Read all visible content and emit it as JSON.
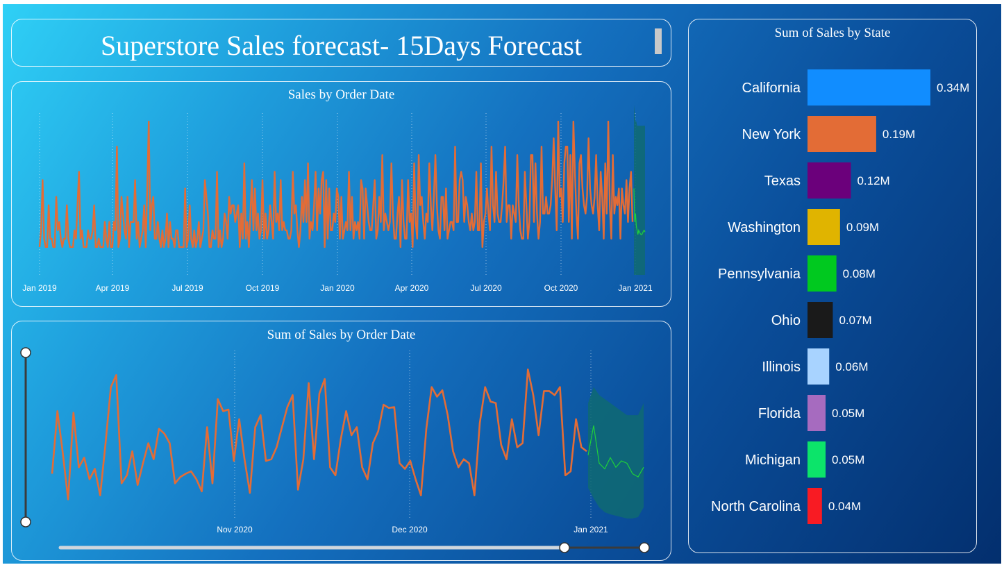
{
  "header": {
    "title": "Superstore Sales forecast- 15Days Forecast"
  },
  "colors": {
    "actual_line": "#e36c36",
    "forecast_line": "#1fd13a",
    "forecast_band": "#0f6a72",
    "bar_colors": [
      "#118dff",
      "#e36c36",
      "#6b007b",
      "#e0b400",
      "#00c91f",
      "#1a1a1a",
      "#a8d3ff",
      "#a66bbf",
      "#0ce46a",
      "#f81b23"
    ]
  },
  "chart_data": [
    {
      "type": "line",
      "title": "Sales by Order Date",
      "x_ticks": [
        "Jan 2019",
        "Apr 2019",
        "Jul 2019",
        "Oct 2019",
        "Jan 2020",
        "Apr 2020",
        "Jul 2020",
        "Oct 2020",
        "Jan 2021"
      ],
      "x_range": [
        "2019-01-01",
        "2021-01-15"
      ],
      "grid": "vertical dotted",
      "series": [
        {
          "values": [
            1,
            3,
            9,
            2,
            1,
            1,
            6,
            2,
            2,
            1,
            1,
            7,
            3,
            4,
            2,
            1,
            2,
            2,
            6,
            2,
            1,
            1,
            1,
            3,
            2,
            6,
            10,
            2,
            3,
            1,
            1,
            1,
            3,
            2,
            2,
            3,
            6,
            1,
            1,
            2,
            1,
            1,
            1,
            4,
            2,
            1,
            4,
            1,
            1,
            4,
            3,
            13,
            1,
            2,
            7,
            5,
            3,
            2,
            7,
            1,
            4,
            4,
            4,
            9,
            2,
            4,
            1,
            2,
            3,
            6,
            1,
            8,
            16,
            3,
            6,
            7,
            2,
            2,
            4,
            2,
            1,
            3,
            1,
            2,
            5,
            1,
            4,
            2,
            2,
            1,
            3,
            3,
            1,
            1,
            1,
            1,
            8,
            1,
            2,
            6,
            2,
            1,
            3,
            1,
            2,
            4,
            1,
            2,
            3,
            9,
            7,
            5,
            1,
            1,
            3,
            2,
            2,
            10,
            1,
            3,
            1,
            2,
            5,
            4,
            2,
            7,
            5,
            6,
            6,
            4,
            5,
            6,
            1,
            5,
            2,
            11,
            2,
            4,
            1,
            5,
            9,
            3,
            8,
            3,
            5,
            2,
            3,
            9,
            2,
            5,
            2,
            3,
            6,
            4,
            2,
            10,
            4,
            5,
            3,
            9,
            3,
            4,
            3,
            3,
            2,
            2,
            3,
            10,
            5,
            6,
            3,
            1,
            3,
            7,
            4,
            9,
            4,
            11,
            2,
            4,
            3,
            6,
            10,
            3,
            8,
            5,
            9,
            10,
            1,
            9,
            2,
            8,
            3,
            3,
            5,
            4,
            8,
            7,
            2,
            7,
            2,
            3,
            4,
            3,
            10,
            3,
            7,
            2,
            4,
            3,
            4,
            2,
            9,
            8,
            2,
            8,
            6,
            4,
            3,
            3,
            6,
            9,
            2,
            3,
            7,
            4,
            12,
            3,
            5,
            4,
            3,
            4,
            11,
            5,
            2,
            2,
            5,
            7,
            1,
            9,
            4,
            2,
            2,
            9,
            4,
            5,
            1,
            11,
            4,
            2,
            12,
            6,
            7,
            4,
            2,
            5,
            4,
            11,
            6,
            3,
            7,
            12,
            6,
            3,
            2,
            7,
            7,
            3,
            8,
            2,
            3,
            4,
            4,
            3,
            13,
            4,
            4,
            9,
            10,
            9,
            4,
            7,
            6,
            4,
            3,
            5,
            3,
            4,
            10,
            3,
            3,
            11,
            1,
            4,
            5,
            8,
            5,
            3,
            13,
            6,
            4,
            10,
            5,
            4,
            4,
            6,
            9,
            13,
            4,
            6,
            6,
            2,
            6,
            5,
            4,
            12,
            6,
            3,
            2,
            2,
            10,
            6,
            2,
            4,
            12,
            12,
            4,
            11,
            5,
            2,
            4,
            13,
            5,
            5,
            7,
            5,
            5,
            6,
            9,
            14,
            8,
            3,
            16,
            7,
            8,
            4,
            11,
            13,
            13,
            4,
            12,
            2,
            16,
            10,
            5,
            2,
            11,
            12,
            8,
            6,
            5,
            7,
            14,
            8,
            6,
            5,
            7,
            12,
            6,
            3,
            10,
            7,
            2,
            11,
            5,
            16,
            6,
            2,
            12,
            5,
            7,
            6,
            8,
            2,
            8,
            6,
            5,
            9,
            4,
            8,
            10,
            4
          ]
        },
        {
          "name": "forecast",
          "values": [
            8,
            4,
            5,
            3.5,
            3,
            2.5,
            3,
            2.8,
            2.6,
            2.5,
            2.5,
            2.7,
            2.9,
            3,
            2.8
          ],
          "lower": [
            0,
            0,
            0,
            0,
            0,
            0,
            0,
            0,
            0,
            0,
            0,
            0,
            0,
            0,
            0
          ],
          "upper": [
            18,
            17,
            16,
            16,
            15.5,
            15.5,
            15.5,
            15.5,
            15.5,
            15.5,
            15.5,
            15.5,
            15.5,
            15.5,
            15.5
          ]
        }
      ]
    },
    {
      "type": "line",
      "title": "Sum of Sales by Order Date",
      "x_ticks": [
        "Nov 2020",
        "Dec 2020",
        "Jan 2021"
      ],
      "x_range": [
        "2020-10-05",
        "2021-01-15"
      ],
      "grid": "vertical dotted",
      "series": [
        {
          "values": [
            42,
            120,
            68,
            10,
            118,
            50,
            62,
            35,
            48,
            15,
            80,
            150,
            165,
            30,
            40,
            70,
            28,
            55,
            80,
            60,
            98,
            92,
            80,
            30,
            38,
            42,
            45,
            35,
            20,
            100,
            30,
            135,
            120,
            122,
            58,
            110,
            60,
            18,
            100,
            115,
            58,
            60,
            75,
            100,
            125,
            140,
            22,
            60,
            155,
            60,
            142,
            160,
            50,
            40,
            85,
            120,
            90,
            100,
            50,
            35,
            80,
            95,
            128,
            124,
            125,
            55,
            48,
            58,
            35,
            15,
            98,
            150,
            138,
            146,
            115,
            70,
            50,
            60,
            55,
            15,
            105,
            150,
            132,
            130,
            78,
            60,
            110,
            75,
            80,
            172,
            140,
            90,
            145,
            145,
            140,
            150,
            40,
            45,
            110,
            75,
            70
          ]
        },
        {
          "name": "forecast",
          "values": [
            65,
            102,
            55,
            48,
            62,
            50,
            58,
            55,
            42,
            38,
            50
          ],
          "lower": [
            0,
            0,
            0,
            0,
            0,
            0,
            0,
            0,
            0,
            0,
            0
          ],
          "upper": [
            130,
            150,
            140,
            135,
            130,
            125,
            120,
            115,
            115,
            115,
            130
          ]
        }
      ]
    },
    {
      "type": "bar",
      "orientation": "horizontal",
      "title": "Sum of Sales by State",
      "categories": [
        "California",
        "New York",
        "Texas",
        "Washington",
        "Pennsylvania",
        "Ohio",
        "Illinois",
        "Florida",
        "Michigan",
        "North Carolina"
      ],
      "values": [
        0.34,
        0.19,
        0.12,
        0.09,
        0.08,
        0.07,
        0.06,
        0.05,
        0.05,
        0.04
      ],
      "labels": [
        "0.34M",
        "0.19M",
        "0.12M",
        "0.09M",
        "0.08M",
        "0.07M",
        "0.06M",
        "0.05M",
        "0.05M",
        "0.04M"
      ],
      "xlim": [
        0,
        0.34
      ]
    }
  ]
}
